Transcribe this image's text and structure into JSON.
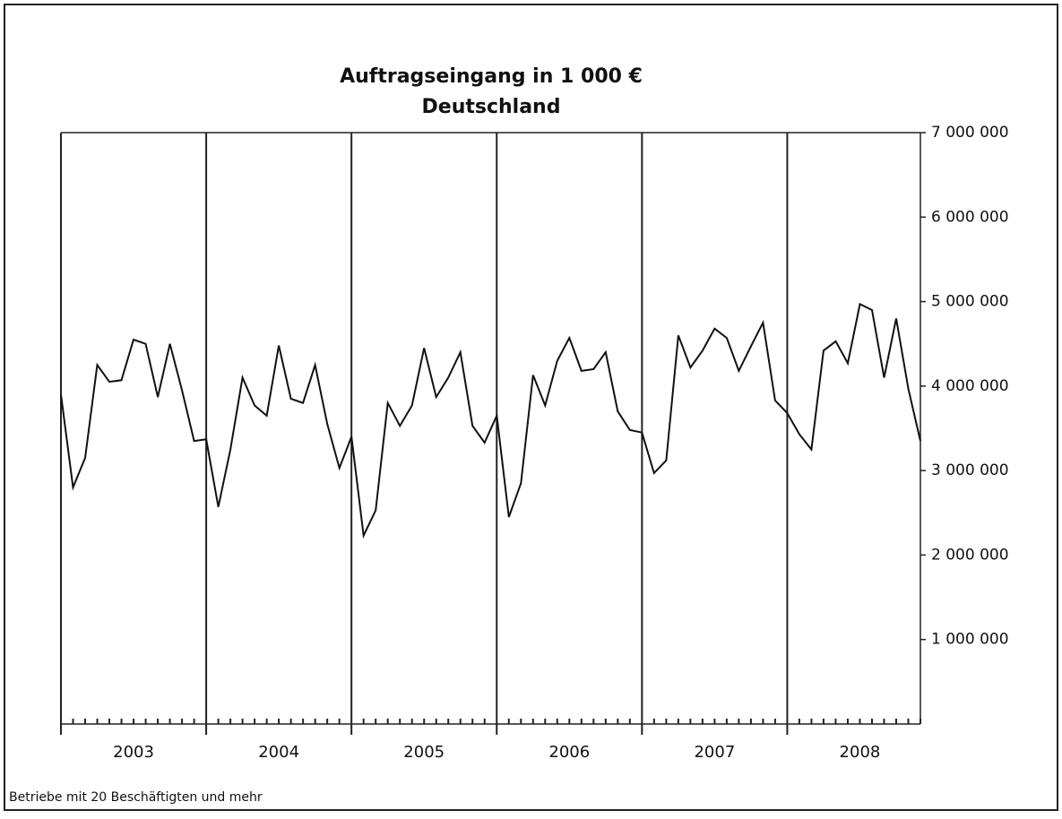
{
  "chart_data": {
    "type": "line",
    "title": "Auftragseingang  in  1 000 €",
    "subtitle": "Deutschland",
    "footnote": "Betriebe mit 20 Beschäftigten und mehr",
    "year_labels": [
      "2003",
      "2004",
      "2005",
      "2006",
      "2007",
      "2008"
    ],
    "color": "#111111",
    "values": [
      3900000,
      2800000,
      3150000,
      4250000,
      4050000,
      4070000,
      4550000,
      4500000,
      3870000,
      4500000,
      3950000,
      3350000,
      3370000,
      2570000,
      3250000,
      4100000,
      3770000,
      3650000,
      4480000,
      3850000,
      3800000,
      4250000,
      3550000,
      3030000,
      3400000,
      2230000,
      2530000,
      3800000,
      3530000,
      3770000,
      4450000,
      3870000,
      4100000,
      4400000,
      3530000,
      3330000,
      3650000,
      2450000,
      2850000,
      4130000,
      3770000,
      4300000,
      4570000,
      4180000,
      4200000,
      4400000,
      3700000,
      3480000,
      3450000,
      2970000,
      3120000,
      4600000,
      4220000,
      4420000,
      4680000,
      4570000,
      4180000,
      4470000,
      4750000,
      3830000,
      3680000,
      3430000,
      3250000,
      4420000,
      4530000,
      4270000,
      4970000,
      4900000,
      4100000,
      4800000,
      3970000,
      3350000
    ],
    "ylim": [
      0,
      7000000
    ],
    "yticks": [
      {
        "value": 1000000,
        "label": "1 000 000"
      },
      {
        "value": 2000000,
        "label": "2 000 000"
      },
      {
        "value": 3000000,
        "label": "3 000 000"
      },
      {
        "value": 4000000,
        "label": "4 000 000"
      },
      {
        "value": 5000000,
        "label": "5 000 000"
      },
      {
        "value": 6000000,
        "label": "6 000 000"
      },
      {
        "value": 7000000,
        "label": "7 000 000"
      }
    ],
    "y_axis_side": "right"
  }
}
